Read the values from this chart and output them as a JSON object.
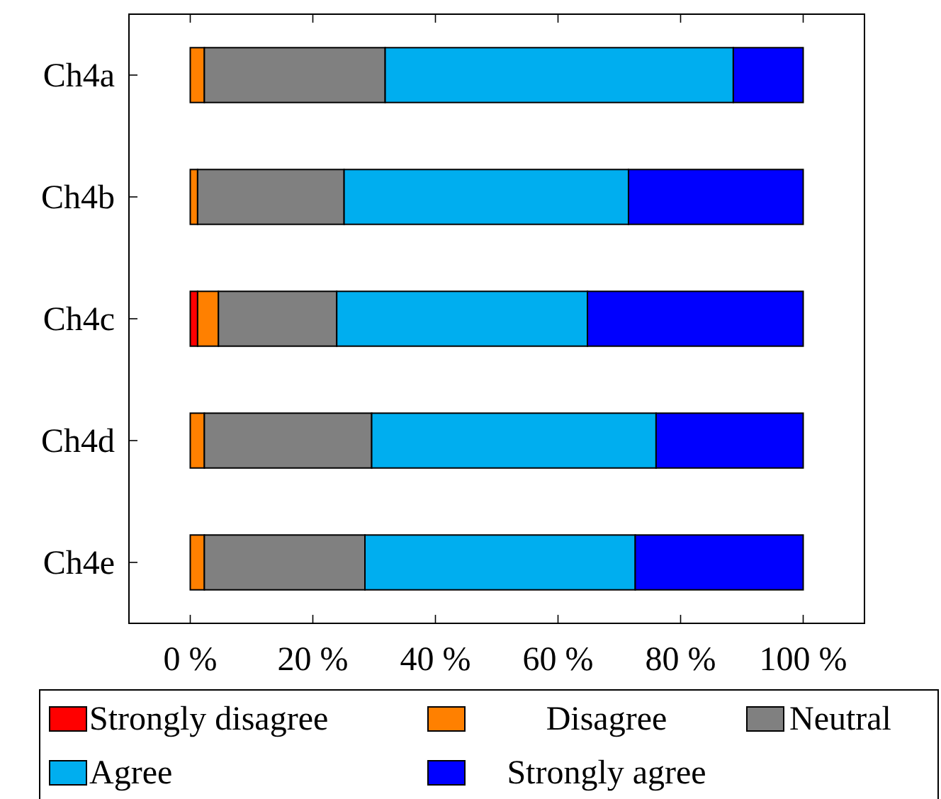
{
  "chart_data": {
    "type": "bar",
    "orientation": "horizontal",
    "stacked": true,
    "categories": [
      "Ch4a",
      "Ch4b",
      "Ch4c",
      "Ch4d",
      "Ch4e"
    ],
    "series": [
      {
        "name": "Strongly disagree",
        "color": "#ff0000",
        "values": [
          0,
          0,
          1.2,
          0,
          0
        ]
      },
      {
        "name": "Disagree",
        "color": "#ff8000",
        "values": [
          2.3,
          1.2,
          3.4,
          2.3,
          2.3
        ]
      },
      {
        "name": "Neutral",
        "color": "#808080",
        "values": [
          29.5,
          23.9,
          19.3,
          27.3,
          26.2
        ]
      },
      {
        "name": "Agree",
        "color": "#00aeef",
        "values": [
          56.8,
          46.4,
          40.9,
          46.4,
          44.1
        ]
      },
      {
        "name": "Strongly agree",
        "color": "#0000ff",
        "values": [
          11.4,
          28.5,
          35.2,
          24.0,
          27.4
        ]
      }
    ],
    "xlim": [
      -10,
      110
    ],
    "xticks": [
      {
        "value": 0,
        "label": "0 %"
      },
      {
        "value": 20,
        "label": "20 %"
      },
      {
        "value": 40,
        "label": "40 %"
      },
      {
        "value": 60,
        "label": "60 %"
      },
      {
        "value": 80,
        "label": "80 %"
      },
      {
        "value": 100,
        "label": "100 %"
      }
    ],
    "legend": "bottom",
    "grid": false
  }
}
